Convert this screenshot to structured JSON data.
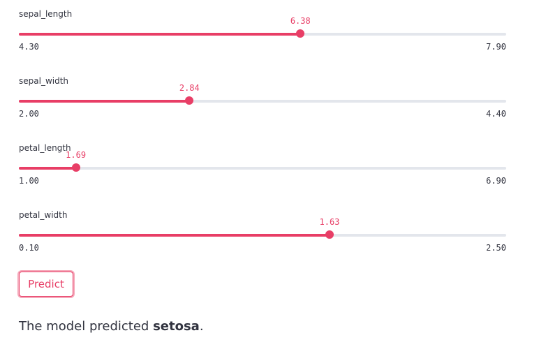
{
  "sliders": [
    {
      "label": "sepal_length",
      "min": 4.3,
      "max": 7.9,
      "value": 6.38,
      "min_label": "4.30",
      "max_label": "7.90",
      "value_label": "6.38"
    },
    {
      "label": "sepal_width",
      "min": 2.0,
      "max": 4.4,
      "value": 2.84,
      "min_label": "2.00",
      "max_label": "4.40",
      "value_label": "2.84"
    },
    {
      "label": "petal_length",
      "min": 1.0,
      "max": 6.9,
      "value": 1.69,
      "min_label": "1.00",
      "max_label": "6.90",
      "value_label": "1.69"
    },
    {
      "label": "petal_width",
      "min": 0.1,
      "max": 2.5,
      "value": 1.63,
      "min_label": "0.10",
      "max_label": "2.50",
      "value_label": "1.63"
    }
  ],
  "predict_button": {
    "label": "Predict"
  },
  "result": {
    "prefix": "The model predicted ",
    "prediction": "setosa",
    "suffix": "."
  },
  "colors": {
    "accent": "#e83e66",
    "track": "#e3e6ec",
    "text": "#31333f"
  }
}
